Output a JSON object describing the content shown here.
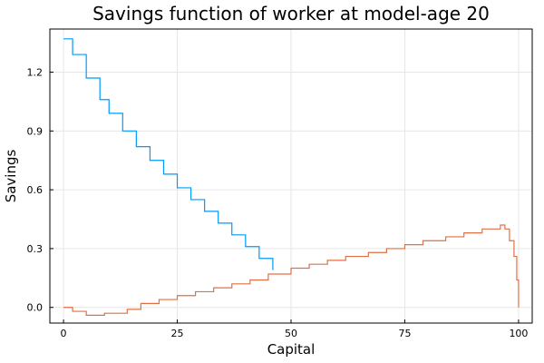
{
  "chart_data": {
    "type": "line",
    "title": "Savings function of worker at model-age 20",
    "xlabel": "Capital",
    "ylabel": "Savings",
    "xlim": [
      -3,
      103
    ],
    "ylim": [
      -0.08,
      1.42
    ],
    "xticks": [
      0,
      25,
      50,
      75,
      100
    ],
    "yticks": [
      0.0,
      0.3,
      0.6,
      0.9,
      1.2
    ],
    "xtick_labels": [
      "0",
      "25",
      "50",
      "75",
      "100"
    ],
    "ytick_labels": [
      "0.0",
      "0.3",
      "0.6",
      "0.9",
      "1.2"
    ],
    "grid": true,
    "legend": "none",
    "series": [
      {
        "color": "#009af9",
        "step": true,
        "x": [
          0,
          2,
          5,
          8,
          10,
          13,
          16,
          19,
          22,
          25,
          28,
          31,
          34,
          37,
          40,
          43,
          46
        ],
        "y": [
          1.37,
          1.29,
          1.17,
          1.06,
          0.99,
          0.9,
          0.82,
          0.75,
          0.68,
          0.61,
          0.55,
          0.49,
          0.43,
          0.37,
          0.31,
          0.25,
          0.19
        ]
      },
      {
        "color": "#e26f46",
        "step": true,
        "x": [
          0,
          2,
          5,
          9,
          14,
          17,
          21,
          25,
          29,
          33,
          37,
          41,
          45,
          50,
          54,
          58,
          62,
          67,
          71,
          75,
          79,
          84,
          88,
          92,
          96,
          97,
          98,
          99,
          99.6,
          100
        ],
        "y": [
          0.0,
          -0.02,
          -0.04,
          -0.03,
          -0.01,
          0.02,
          0.04,
          0.06,
          0.08,
          0.1,
          0.12,
          0.14,
          0.17,
          0.2,
          0.22,
          0.24,
          0.26,
          0.28,
          0.3,
          0.32,
          0.34,
          0.36,
          0.38,
          0.4,
          0.42,
          0.4,
          0.34,
          0.26,
          0.14,
          0.0
        ]
      }
    ]
  }
}
